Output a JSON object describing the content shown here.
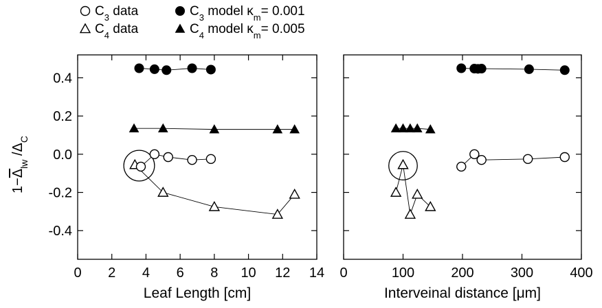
{
  "legend": {
    "entries": [
      {
        "symbol": "open-circle",
        "series": "c3_data",
        "prefix": "C",
        "sub": "3",
        "suffix": " data",
        "kappa": "",
        "value": ""
      },
      {
        "symbol": "filled-circle",
        "series": "c3_model",
        "prefix": "C",
        "sub": "3",
        "suffix": " model ",
        "kappa": "κ",
        "kappa_sub": "m",
        "value": "= 0.001"
      },
      {
        "symbol": "open-triangle",
        "series": "c4_data",
        "prefix": "C",
        "sub": "4",
        "suffix": " data",
        "kappa": "",
        "value": ""
      },
      {
        "symbol": "filled-triangle",
        "series": "c4_model",
        "prefix": "C",
        "sub": "4",
        "suffix": " model ",
        "kappa": "κ",
        "kappa_sub": "m",
        "value": "= 0.005"
      }
    ]
  },
  "ylabel": {
    "main": "1−",
    "delta1": "Δ",
    "sub1": "lw",
    "sep": " /",
    "delta2": "Δ",
    "sub2": "C"
  },
  "chart_data": [
    {
      "type": "scatter",
      "panel": "left",
      "xlabel": "Leaf Length [cm]",
      "xlim": [
        0,
        14
      ],
      "ylim": [
        -0.55,
        0.52
      ],
      "xticks": [
        0,
        2,
        4,
        6,
        8,
        10,
        12,
        14
      ],
      "yticks": [
        -0.4,
        -0.2,
        0.0,
        0.2,
        0.4
      ],
      "ytick_labels": [
        "-0.4",
        "-0.2",
        "0.0",
        "0.2",
        "0.4"
      ],
      "series": [
        {
          "key": "c3_model",
          "marker": "filled-circle",
          "x": [
            3.6,
            4.5,
            5.2,
            6.7,
            7.8
          ],
          "y": [
            0.45,
            0.445,
            0.44,
            0.45,
            0.443
          ]
        },
        {
          "key": "c4_model",
          "marker": "filled-triangle",
          "x": [
            3.3,
            5.0,
            8.0,
            11.7,
            12.7
          ],
          "y": [
            0.135,
            0.135,
            0.13,
            0.13,
            0.13
          ]
        },
        {
          "key": "c3_data",
          "marker": "open-circle",
          "x": [
            3.7,
            4.5,
            5.3,
            6.7,
            7.8
          ],
          "y": [
            -0.065,
            0.0,
            -0.015,
            -0.03,
            -0.025
          ]
        },
        {
          "key": "c4_data",
          "marker": "open-triangle",
          "x": [
            3.35,
            5.0,
            8.0,
            11.7,
            12.7
          ],
          "y": [
            -0.055,
            -0.2,
            -0.275,
            -0.315,
            -0.21
          ]
        }
      ],
      "highlight": {
        "x": 3.6,
        "y": -0.06,
        "radius_x": 0.9,
        "label": ""
      }
    },
    {
      "type": "scatter",
      "panel": "right",
      "xlabel": "Interveinal distance [μm]",
      "xlim": [
        0,
        400
      ],
      "ylim": [
        -0.55,
        0.52
      ],
      "xticks": [
        0,
        100,
        200,
        300,
        400
      ],
      "yticks": [
        -0.4,
        -0.2,
        0.0,
        0.2,
        0.4
      ],
      "series": [
        {
          "key": "c3_model",
          "marker": "filled-circle",
          "x": [
            198,
            220,
            226,
            232,
            312,
            372
          ],
          "y": [
            0.45,
            0.448,
            0.447,
            0.448,
            0.445,
            0.44
          ]
        },
        {
          "key": "c4_model",
          "marker": "filled-triangle",
          "x": [
            88,
            100,
            112,
            124,
            146
          ],
          "y": [
            0.135,
            0.135,
            0.135,
            0.135,
            0.13
          ]
        },
        {
          "key": "c3_data",
          "marker": "open-circle",
          "x": [
            198,
            220,
            232,
            310,
            372
          ],
          "y": [
            -0.065,
            0.0,
            -0.03,
            -0.025,
            -0.015
          ]
        },
        {
          "key": "c4_data",
          "marker": "open-triangle",
          "x": [
            88,
            100,
            112,
            124,
            146
          ],
          "y": [
            -0.2,
            -0.055,
            -0.315,
            -0.21,
            -0.275
          ]
        }
      ],
      "highlight": {
        "x": 100,
        "y": -0.06,
        "radius_x": 24,
        "label": ""
      }
    }
  ]
}
